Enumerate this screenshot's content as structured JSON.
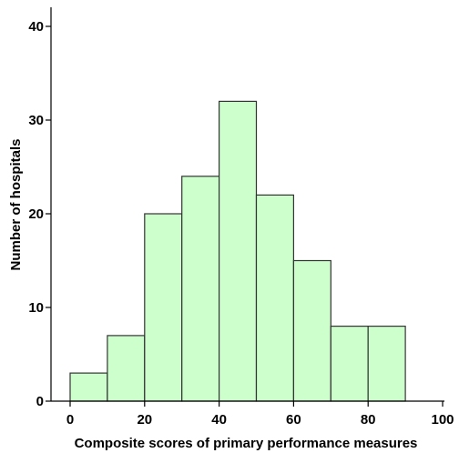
{
  "chart_data": {
    "type": "bar",
    "title": "",
    "xlabel": "Composite scores of primary performance measures",
    "ylabel": "Number of hospitals",
    "xlim": [
      0,
      100
    ],
    "ylim": [
      0,
      40
    ],
    "x_ticks": [
      "0",
      "20",
      "40",
      "60",
      "80",
      "100"
    ],
    "y_ticks": [
      "0",
      "10",
      "20",
      "30",
      "40"
    ],
    "bins": [
      {
        "start": 0,
        "end": 10,
        "value": 3
      },
      {
        "start": 10,
        "end": 20,
        "value": 7
      },
      {
        "start": 20,
        "end": 30,
        "value": 20
      },
      {
        "start": 30,
        "end": 40,
        "value": 24
      },
      {
        "start": 40,
        "end": 50,
        "value": 32
      },
      {
        "start": 50,
        "end": 60,
        "value": 22
      },
      {
        "start": 60,
        "end": 70,
        "value": 15
      },
      {
        "start": 70,
        "end": 80,
        "value": 8
      },
      {
        "start": 80,
        "end": 90,
        "value": 8
      }
    ],
    "grid": false,
    "legend": "none",
    "bar_color": "#ccffcc",
    "bar_edge_color": "#333333"
  }
}
